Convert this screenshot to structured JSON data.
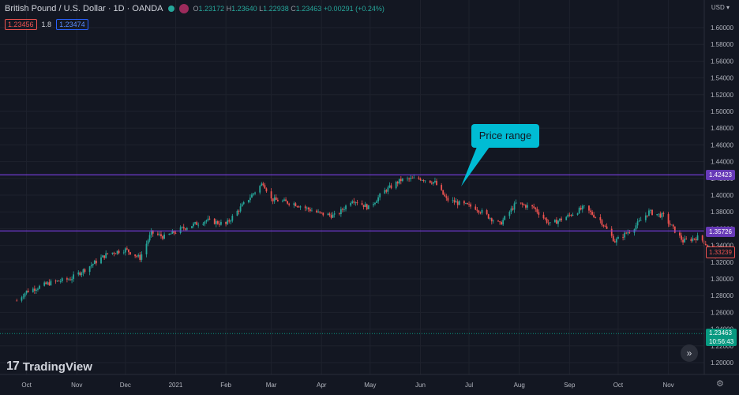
{
  "header": {
    "symbol_title": "British Pound / U.S. Dollar · 1D · OANDA",
    "ohlc": {
      "o_label": "O",
      "o": "1.23172",
      "h_label": "H",
      "h": "1.23640",
      "l_label": "L",
      "l": "1.22938",
      "c_label": "C",
      "c": "1.23463",
      "change": "+0.00291 (+0.24%)"
    },
    "sell_price": "1.23456",
    "spread": "1.8",
    "buy_price": "1.23474",
    "currency": "USD"
  },
  "brand": {
    "logo_mark": "17",
    "logo_text": "TradingView"
  },
  "annotation": {
    "callout_text": "Price range"
  },
  "price_labels": {
    "level1": "1.42423",
    "level2": "1.35726",
    "last_marker": "1.33239",
    "current": "1.23463",
    "countdown": "10:56:43"
  },
  "chart_data": {
    "type": "candlestick",
    "y_ticks": [
      "1.60000",
      "1.58000",
      "1.56000",
      "1.54000",
      "1.52000",
      "1.50000",
      "1.48000",
      "1.46000",
      "1.44000",
      "1.42000",
      "1.40000",
      "1.38000",
      "1.36000",
      "1.34000",
      "1.32000",
      "1.30000",
      "1.28000",
      "1.26000",
      "1.24000",
      "1.22000",
      "1.20000"
    ],
    "ylim": [
      1.2,
      1.6
    ],
    "x_ticks": [
      "Oct",
      "Nov",
      "Dec",
      "2021",
      "Feb",
      "Mar",
      "Apr",
      "May",
      "Jun",
      "Jul",
      "Aug",
      "Sep",
      "Oct",
      "Nov"
    ],
    "horizontal_levels": [
      1.42423,
      1.35726
    ],
    "current_price": 1.23463,
    "close_path": [
      [
        "2020-09-25",
        1.274
      ],
      [
        "2020-10-01",
        1.285
      ],
      [
        "2020-10-15",
        1.295
      ],
      [
        "2020-10-28",
        1.3
      ],
      [
        "2020-11-05",
        1.31
      ],
      [
        "2020-11-20",
        1.33
      ],
      [
        "2020-12-01",
        1.335
      ],
      [
        "2020-12-10",
        1.325
      ],
      [
        "2020-12-17",
        1.355
      ],
      [
        "2020-12-25",
        1.35
      ],
      [
        "2021-01-05",
        1.36
      ],
      [
        "2021-01-20",
        1.37
      ],
      [
        "2021-02-01",
        1.365
      ],
      [
        "2021-02-10",
        1.385
      ],
      [
        "2021-02-24",
        1.415
      ],
      [
        "2021-03-01",
        1.395
      ],
      [
        "2021-03-15",
        1.39
      ],
      [
        "2021-03-31",
        1.378
      ],
      [
        "2021-04-10",
        1.375
      ],
      [
        "2021-04-20",
        1.395
      ],
      [
        "2021-04-30",
        1.385
      ],
      [
        "2021-05-10",
        1.405
      ],
      [
        "2021-05-20",
        1.418
      ],
      [
        "2021-06-01",
        1.42
      ],
      [
        "2021-06-10",
        1.415
      ],
      [
        "2021-06-17",
        1.395
      ],
      [
        "2021-06-25",
        1.39
      ],
      [
        "2021-07-05",
        1.385
      ],
      [
        "2021-07-20",
        1.365
      ],
      [
        "2021-07-30",
        1.39
      ],
      [
        "2021-08-10",
        1.385
      ],
      [
        "2021-08-20",
        1.365
      ],
      [
        "2021-08-31",
        1.375
      ],
      [
        "2021-09-10",
        1.385
      ],
      [
        "2021-09-20",
        1.37
      ],
      [
        "2021-09-29",
        1.345
      ],
      [
        "2021-10-10",
        1.36
      ],
      [
        "2021-10-20",
        1.38
      ],
      [
        "2021-10-29",
        1.375
      ],
      [
        "2021-11-10",
        1.345
      ],
      [
        "2021-11-20",
        1.35
      ],
      [
        "2021-11-30",
        1.33
      ]
    ]
  },
  "colors": {
    "background": "#131722",
    "up": "#26a69a",
    "down": "#ef5350",
    "level": "#7b3fe4",
    "callout": "#00bcd4"
  }
}
